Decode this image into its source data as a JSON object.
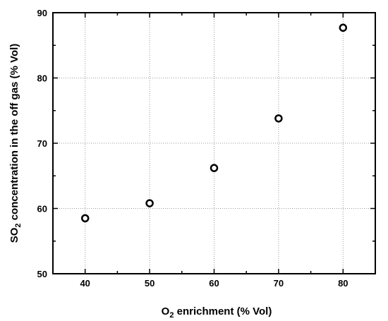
{
  "chart_data": {
    "type": "scatter",
    "x": [
      40,
      50,
      60,
      70,
      80
    ],
    "y": [
      58.5,
      60.8,
      66.2,
      73.8,
      87.7
    ],
    "xlabel": {
      "prefix": "O",
      "sub": "2",
      "suffix": " enrichment (% Vol)"
    },
    "ylabel": {
      "prefix": "SO",
      "sub": "2",
      "suffix": " concentration in the off gas (% Vol)"
    },
    "xlim": [
      35,
      85
    ],
    "ylim": [
      50,
      90
    ],
    "xticks": [
      40,
      50,
      60,
      70,
      80
    ],
    "yticks": [
      50,
      60,
      70,
      80,
      90
    ],
    "grid": true,
    "marker": "open-circle",
    "colors": {
      "marker": "#000000",
      "grid": "#9a9a9a",
      "axes": "#000000"
    }
  }
}
